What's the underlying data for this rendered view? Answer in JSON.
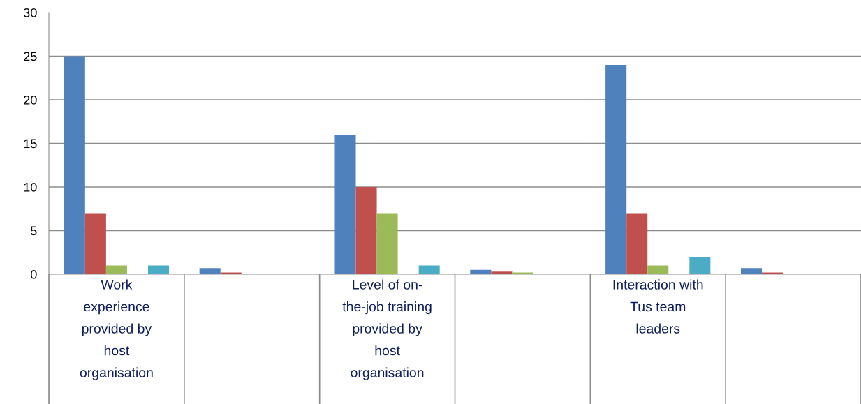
{
  "chart_data": {
    "type": "bar",
    "categories": [
      "Work\nexperience\nprovided by\nhost\norganisation",
      null,
      "Level of on-\nthe-job training\nprovided by\nhost\norganisation",
      null,
      "Interaction with\nTus team\nleaders",
      null
    ],
    "series": [
      {
        "color": "#4f81bd",
        "values": [
          25,
          0.7,
          16,
          0.5,
          24,
          0.7
        ]
      },
      {
        "color": "#c0504d",
        "values": [
          7,
          0.2,
          10,
          0.3,
          7,
          0.2
        ]
      },
      {
        "color": "#9bbb59",
        "values": [
          1,
          0,
          7,
          0.2,
          1,
          0
        ]
      },
      {
        "color": "#8064a2",
        "values": [
          0,
          0,
          0,
          0,
          0,
          0
        ]
      },
      {
        "color": "#4bacc6",
        "values": [
          1,
          0,
          1,
          0,
          2,
          0
        ]
      }
    ],
    "ylim": [
      0,
      30
    ],
    "yticks": [
      0,
      5,
      10,
      15,
      20,
      25,
      30
    ],
    "grid": "y",
    "legend": false
  }
}
